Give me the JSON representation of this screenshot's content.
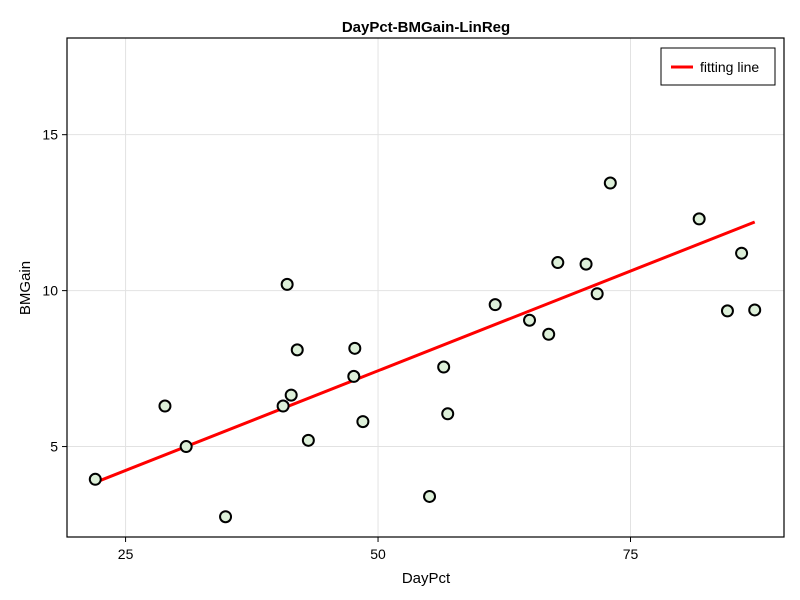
{
  "chart_data": {
    "type": "scatter",
    "title": "DayPct-BMGain-LinReg",
    "xlabel": "DayPct",
    "ylabel": "BMGain",
    "xlim": [
      19.2,
      90.2
    ],
    "ylim": [
      2.1,
      18.1
    ],
    "xticks": [
      25,
      50,
      75
    ],
    "yticks": [
      5,
      10,
      15
    ],
    "xtick_labels": [
      "25",
      "50",
      "75"
    ],
    "ytick_labels": [
      "5",
      "10",
      "15"
    ],
    "grid": true,
    "legend_position": "top-right",
    "points": {
      "x": [
        22,
        28.9,
        31,
        34.9,
        40.6,
        41,
        41.4,
        42,
        43.1,
        47.6,
        47.7,
        48.5,
        55.1,
        56.5,
        56.9,
        61.6,
        65,
        66.9,
        67.8,
        70.6,
        71.7,
        73,
        81.8,
        84.6,
        86,
        87.3
      ],
      "y": [
        3.95,
        6.3,
        5.0,
        2.75,
        6.3,
        10.2,
        6.65,
        8.1,
        5.2,
        7.25,
        8.15,
        5.8,
        3.4,
        7.55,
        6.05,
        9.55,
        9.05,
        8.6,
        10.9,
        10.85,
        9.9,
        13.45,
        12.3,
        9.35,
        11.2,
        9.38
      ],
      "fill_color": "#ddf0d9",
      "edge_color": "#000000"
    },
    "series": [
      {
        "name": "fitting line",
        "x": [
          22,
          87.3
        ],
        "y": [
          3.85,
          12.2
        ],
        "color": "#ff0000"
      }
    ]
  }
}
